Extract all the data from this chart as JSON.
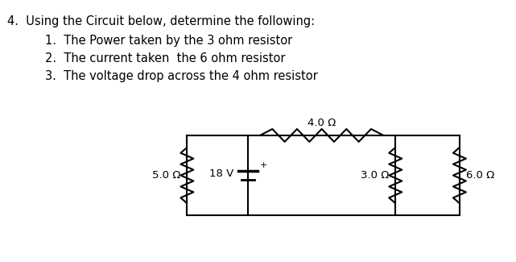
{
  "title_line1": "4.  Using the Circuit below, determine the following:",
  "items": [
    "1.  The Power taken by the 3 ohm resistor",
    "2.  The current taken  the 6 ohm resistor",
    "3.  The voltage drop across the 4 ohm resistor"
  ],
  "resistor_4_label": "4.0 Ω",
  "resistor_5_label": "5.0 Ω",
  "resistor_3_label": "3.0 Ω",
  "resistor_6_label": "6.0 Ω",
  "voltage_label": "18 V",
  "bg_color": "#ffffff",
  "circuit_color": "#000000",
  "text_color": "#000000",
  "font_size_title": 10.5,
  "font_size_items": 10.5,
  "font_size_labels": 9.5
}
